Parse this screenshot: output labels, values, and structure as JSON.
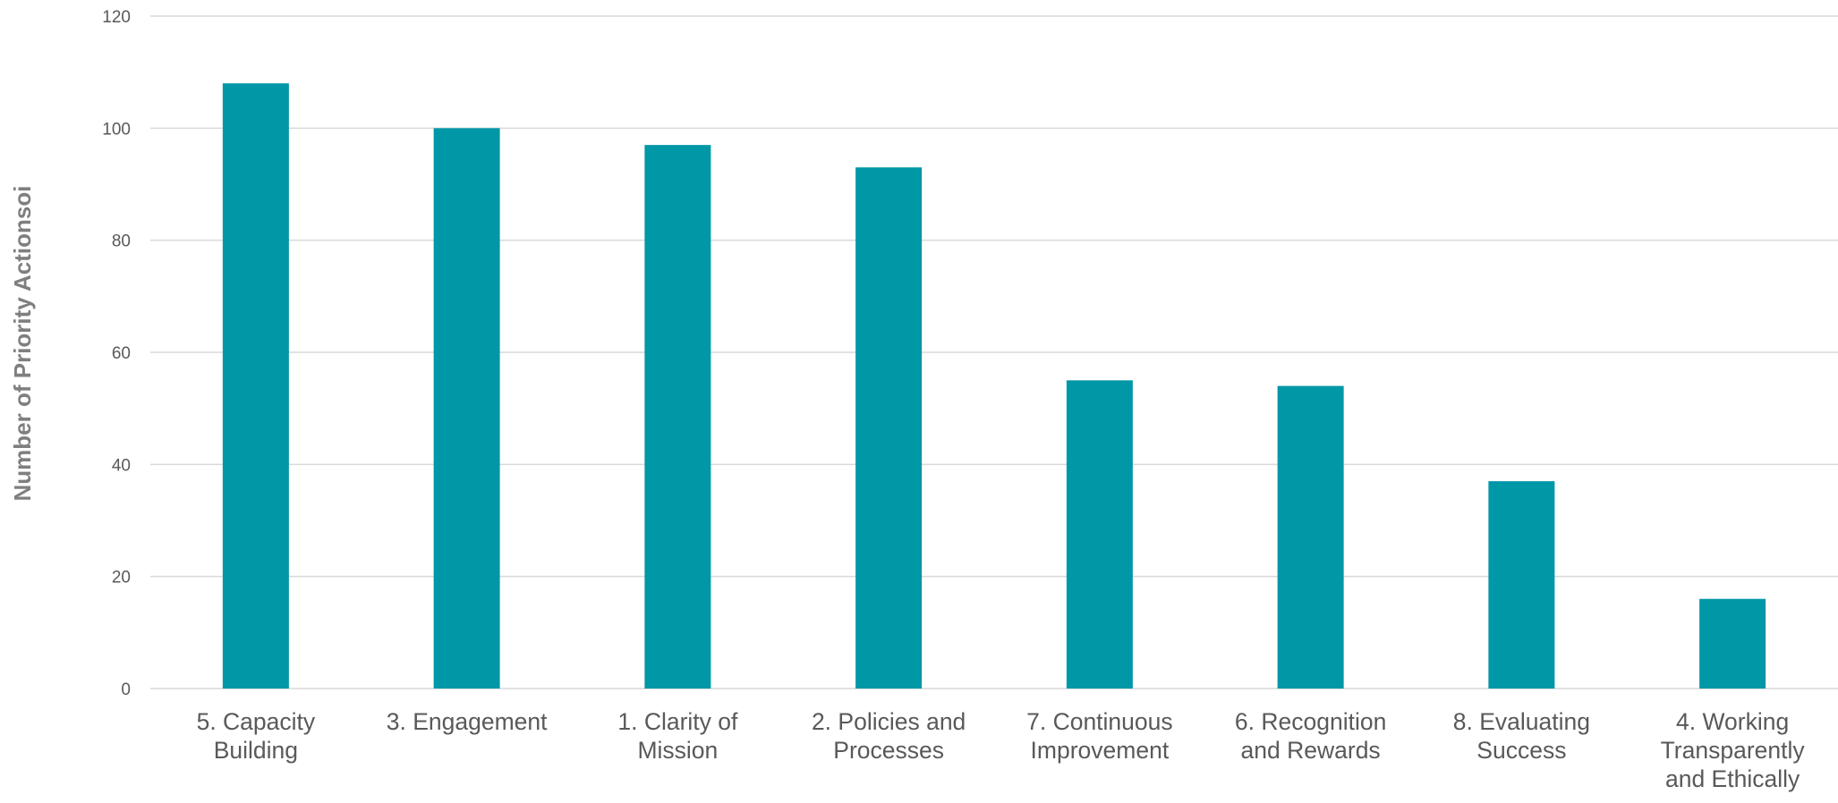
{
  "chart_data": {
    "type": "bar",
    "title": "",
    "xlabel": "",
    "ylabel": "Number of Priority Actionsoi",
    "ylim": [
      0,
      120
    ],
    "yticks": [
      0,
      20,
      40,
      60,
      80,
      100,
      120
    ],
    "grid": true,
    "legend": "none",
    "categories": [
      [
        "5. Capacity",
        "Building"
      ],
      [
        "3. Engagement"
      ],
      [
        "1. Clarity of",
        "Mission"
      ],
      [
        "2. Policies and",
        "Processes"
      ],
      [
        "7. Continuous",
        "Improvement"
      ],
      [
        "6. Recognition",
        "and Rewards"
      ],
      [
        "8. Evaluating",
        "Success"
      ],
      [
        "4. Working",
        "Transparently",
        "and Ethically"
      ]
    ],
    "values": [
      108,
      100,
      97,
      93,
      55,
      54,
      37,
      16
    ],
    "colors": {
      "bar": "#0097a7",
      "grid": "#d9d9d9",
      "text": "#595959",
      "axis_title": "#7f7f7f"
    }
  }
}
